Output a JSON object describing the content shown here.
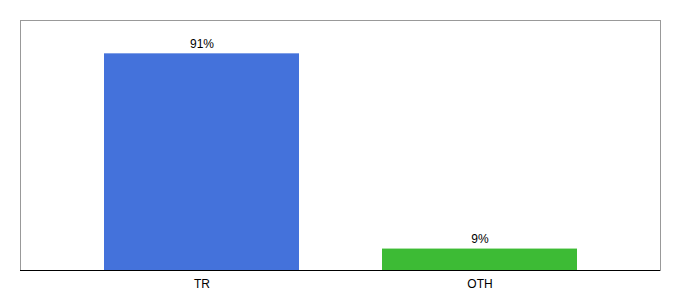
{
  "chart_data": {
    "type": "bar",
    "categories": [
      "TR",
      "OTH"
    ],
    "values": [
      91,
      9
    ],
    "colors": [
      "#4472db",
      "#3dbb35"
    ],
    "ylim": [
      0,
      105
    ],
    "data_labels": true,
    "value_labels": [
      "91%",
      "9%"
    ],
    "tick_labels": "x",
    "grid": false
  }
}
